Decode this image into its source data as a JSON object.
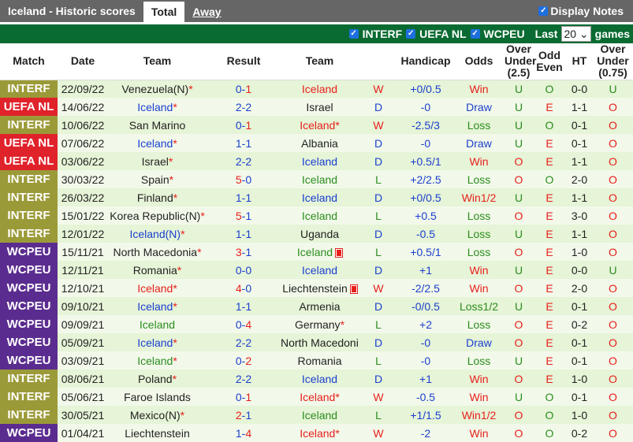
{
  "header": {
    "title": "Iceland - Historic scores",
    "tabs": [
      "Total",
      "Away"
    ],
    "display_notes": "Display Notes"
  },
  "filters": {
    "items": [
      "INTERF",
      "UEFA NL",
      "WCPEU"
    ],
    "last_label": "Last",
    "last_value": "20",
    "games_label": "games"
  },
  "colors": {
    "INTERF": "#9b9a38",
    "UEFA NL": "#e0222b",
    "WCPEU": "#5b2c8f",
    "W": "red",
    "D": "blue",
    "L": "green"
  },
  "columns": [
    "Match",
    "Date",
    "Team",
    "Result",
    "Team",
    "",
    "Handicap",
    "Odds",
    "Over Under (2.5)",
    "Odd Even",
    "HT",
    "Over Under (0.75)"
  ],
  "rows": [
    {
      "match": "INTERF",
      "date": "22/09/22",
      "home": "Venezuela(N)",
      "hs": true,
      "hc": "blk",
      "score": "0-1",
      "away": "Iceland",
      "as": false,
      "ac": "red",
      "card": false,
      "res": "W",
      "hcp": "+0/0.5",
      "odds": "Win",
      "ou": "U",
      "oe": "O",
      "ht": "0-0",
      "ou2": "U"
    },
    {
      "match": "UEFA NL",
      "date": "14/06/22",
      "home": "Iceland",
      "hs": true,
      "hc": "blue",
      "score": "2-2",
      "away": "Israel",
      "as": false,
      "ac": "blk",
      "card": false,
      "res": "D",
      "hcp": "-0",
      "odds": "Draw",
      "ou": "U",
      "oe": "E",
      "ht": "1-1",
      "ou2": "O"
    },
    {
      "match": "INTERF",
      "date": "10/06/22",
      "home": "San Marino",
      "hs": false,
      "hc": "blk",
      "score": "0-1",
      "away": "Iceland",
      "as": true,
      "ac": "red",
      "card": false,
      "res": "W",
      "hcp": "-2.5/3",
      "odds": "Loss",
      "ou": "U",
      "oe": "O",
      "ht": "0-1",
      "ou2": "O"
    },
    {
      "match": "UEFA NL",
      "date": "07/06/22",
      "home": "Iceland",
      "hs": true,
      "hc": "blue",
      "score": "1-1",
      "away": "Albania",
      "as": false,
      "ac": "blk",
      "card": false,
      "res": "D",
      "hcp": "-0",
      "odds": "Draw",
      "ou": "U",
      "oe": "E",
      "ht": "0-1",
      "ou2": "O"
    },
    {
      "match": "UEFA NL",
      "date": "03/06/22",
      "home": "Israel",
      "hs": true,
      "hc": "blk",
      "score": "2-2",
      "away": "Iceland",
      "as": false,
      "ac": "blue",
      "card": false,
      "res": "D",
      "hcp": "+0.5/1",
      "odds": "Win",
      "ou": "O",
      "oe": "E",
      "ht": "1-1",
      "ou2": "O"
    },
    {
      "match": "INTERF",
      "date": "30/03/22",
      "home": "Spain",
      "hs": true,
      "hc": "blk",
      "score": "5-0",
      "away": "Iceland",
      "as": false,
      "ac": "green",
      "card": false,
      "res": "L",
      "hcp": "+2/2.5",
      "odds": "Loss",
      "ou": "O",
      "oe": "O",
      "ht": "2-0",
      "ou2": "O"
    },
    {
      "match": "INTERF",
      "date": "26/03/22",
      "home": "Finland",
      "hs": true,
      "hc": "blk",
      "score": "1-1",
      "away": "Iceland",
      "as": false,
      "ac": "blue",
      "card": false,
      "res": "D",
      "hcp": "+0/0.5",
      "odds": "Win1/2",
      "ou": "U",
      "oe": "E",
      "ht": "1-1",
      "ou2": "O"
    },
    {
      "match": "INTERF",
      "date": "15/01/22",
      "home": "Korea Republic(N)",
      "hs": true,
      "hc": "blk",
      "score": "5-1",
      "away": "Iceland",
      "as": false,
      "ac": "green",
      "card": false,
      "res": "L",
      "hcp": "+0.5",
      "odds": "Loss",
      "ou": "O",
      "oe": "E",
      "ht": "3-0",
      "ou2": "O"
    },
    {
      "match": "INTERF",
      "date": "12/01/22",
      "home": "Iceland(N)",
      "hs": true,
      "hc": "blue",
      "score": "1-1",
      "away": "Uganda",
      "as": false,
      "ac": "blk",
      "card": false,
      "res": "D",
      "hcp": "-0.5",
      "odds": "Loss",
      "ou": "U",
      "oe": "E",
      "ht": "1-1",
      "ou2": "O"
    },
    {
      "match": "WCPEU",
      "date": "15/11/21",
      "home": "North Macedonia",
      "hs": true,
      "hc": "blk",
      "score": "3-1",
      "away": "Iceland",
      "as": false,
      "ac": "green",
      "card": true,
      "res": "L",
      "hcp": "+0.5/1",
      "odds": "Loss",
      "ou": "O",
      "oe": "E",
      "ht": "1-0",
      "ou2": "O"
    },
    {
      "match": "WCPEU",
      "date": "12/11/21",
      "home": "Romania",
      "hs": true,
      "hc": "blk",
      "score": "0-0",
      "away": "Iceland",
      "as": false,
      "ac": "blue",
      "card": false,
      "res": "D",
      "hcp": "+1",
      "odds": "Win",
      "ou": "U",
      "oe": "E",
      "ht": "0-0",
      "ou2": "U"
    },
    {
      "match": "WCPEU",
      "date": "12/10/21",
      "home": "Iceland",
      "hs": true,
      "hc": "red",
      "score": "4-0",
      "away": "Liechtenstein",
      "as": false,
      "ac": "blk",
      "card": true,
      "res": "W",
      "hcp": "-2/2.5",
      "odds": "Win",
      "ou": "O",
      "oe": "E",
      "ht": "2-0",
      "ou2": "O"
    },
    {
      "match": "WCPEU",
      "date": "09/10/21",
      "home": "Iceland",
      "hs": true,
      "hc": "blue",
      "score": "1-1",
      "away": "Armenia",
      "as": false,
      "ac": "blk",
      "card": false,
      "res": "D",
      "hcp": "-0/0.5",
      "odds": "Loss1/2",
      "ou": "U",
      "oe": "E",
      "ht": "0-1",
      "ou2": "O"
    },
    {
      "match": "WCPEU",
      "date": "09/09/21",
      "home": "Iceland",
      "hs": false,
      "hc": "green",
      "score": "0-4",
      "away": "Germany",
      "as": true,
      "ac": "blk",
      "card": false,
      "res": "L",
      "hcp": "+2",
      "odds": "Loss",
      "ou": "O",
      "oe": "E",
      "ht": "0-2",
      "ou2": "O"
    },
    {
      "match": "WCPEU",
      "date": "05/09/21",
      "home": "Iceland",
      "hs": true,
      "hc": "blue",
      "score": "2-2",
      "away": "North Macedonia",
      "as": false,
      "ac": "blk",
      "card": false,
      "res": "D",
      "hcp": "-0",
      "odds": "Draw",
      "ou": "O",
      "oe": "E",
      "ht": "0-1",
      "ou2": "O"
    },
    {
      "match": "WCPEU",
      "date": "03/09/21",
      "home": "Iceland",
      "hs": true,
      "hc": "green",
      "score": "0-2",
      "away": "Romania",
      "as": false,
      "ac": "blk",
      "card": false,
      "res": "L",
      "hcp": "-0",
      "odds": "Loss",
      "ou": "U",
      "oe": "E",
      "ht": "0-1",
      "ou2": "O"
    },
    {
      "match": "INTERF",
      "date": "08/06/21",
      "home": "Poland",
      "hs": true,
      "hc": "blk",
      "score": "2-2",
      "away": "Iceland",
      "as": false,
      "ac": "blue",
      "card": false,
      "res": "D",
      "hcp": "+1",
      "odds": "Win",
      "ou": "O",
      "oe": "E",
      "ht": "1-0",
      "ou2": "O"
    },
    {
      "match": "INTERF",
      "date": "05/06/21",
      "home": "Faroe Islands",
      "hs": false,
      "hc": "blk",
      "score": "0-1",
      "away": "Iceland",
      "as": true,
      "ac": "red",
      "card": false,
      "res": "W",
      "hcp": "-0.5",
      "odds": "Win",
      "ou": "U",
      "oe": "O",
      "ht": "0-1",
      "ou2": "O"
    },
    {
      "match": "INTERF",
      "date": "30/05/21",
      "home": "Mexico(N)",
      "hs": true,
      "hc": "blk",
      "score": "2-1",
      "away": "Iceland",
      "as": false,
      "ac": "green",
      "card": false,
      "res": "L",
      "hcp": "+1/1.5",
      "odds": "Win1/2",
      "ou": "O",
      "oe": "O",
      "ht": "1-0",
      "ou2": "O"
    },
    {
      "match": "WCPEU",
      "date": "01/04/21",
      "home": "Liechtenstein",
      "hs": false,
      "hc": "blk",
      "score": "1-4",
      "away": "Iceland",
      "as": true,
      "ac": "red",
      "card": false,
      "res": "W",
      "hcp": "-2",
      "odds": "Win",
      "ou": "O",
      "oe": "O",
      "ht": "0-2",
      "ou2": "O"
    }
  ]
}
